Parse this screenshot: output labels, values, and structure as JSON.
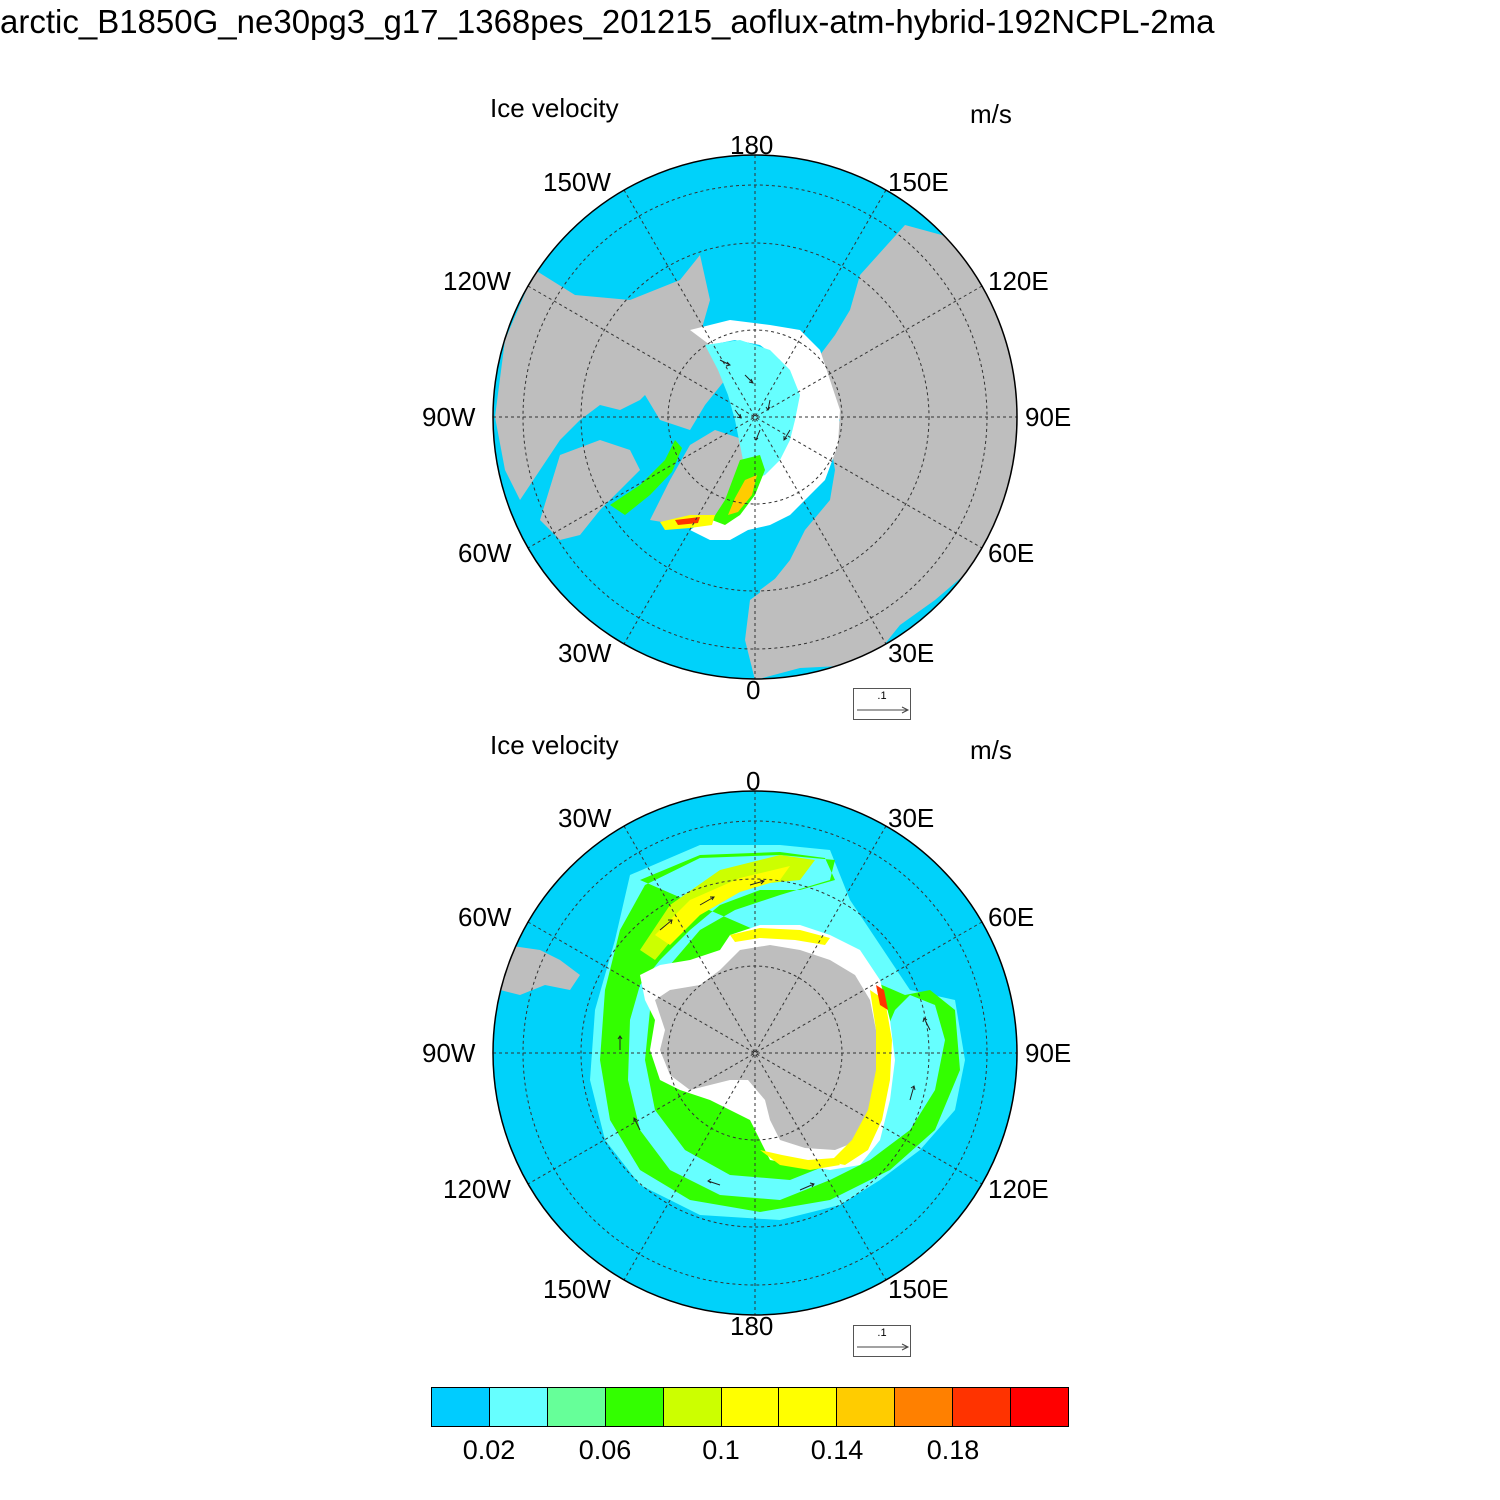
{
  "page_title": "arctic_B1850G_ne30pg3_g17_1368pes_201215_aoflux-atm-hybrid-192NCPL-2ma",
  "colors": {
    "ocean": "#00d2fa",
    "land": "#bebebe",
    "missing": "#ffffff",
    "gridline": "#333333"
  },
  "panels": [
    {
      "id": "north",
      "title": "Ice velocity",
      "units": "m/s",
      "ref_vector_label": ".1",
      "longitude_labels": [
        "180",
        "150E",
        "120E",
        "90E",
        "60E",
        "30E",
        "0",
        "30W",
        "60W",
        "90W",
        "120W",
        "150W"
      ]
    },
    {
      "id": "south",
      "title": "Ice velocity",
      "units": "m/s",
      "ref_vector_label": ".1",
      "longitude_labels": [
        "0",
        "30E",
        "60E",
        "90E",
        "120E",
        "150E",
        "180",
        "150W",
        "120W",
        "90W",
        "60W",
        "30W"
      ]
    }
  ],
  "colorbar": {
    "colors": [
      "#00ccff",
      "#66ffff",
      "#66ff99",
      "#33ff00",
      "#ccff00",
      "#ffff00",
      "#ffff00",
      "#ffcc00",
      "#ff8000",
      "#ff3300",
      "#ff0000"
    ],
    "tick_labels": [
      "0.02",
      "0.06",
      "0.1",
      "0.14",
      "0.18"
    ]
  }
}
